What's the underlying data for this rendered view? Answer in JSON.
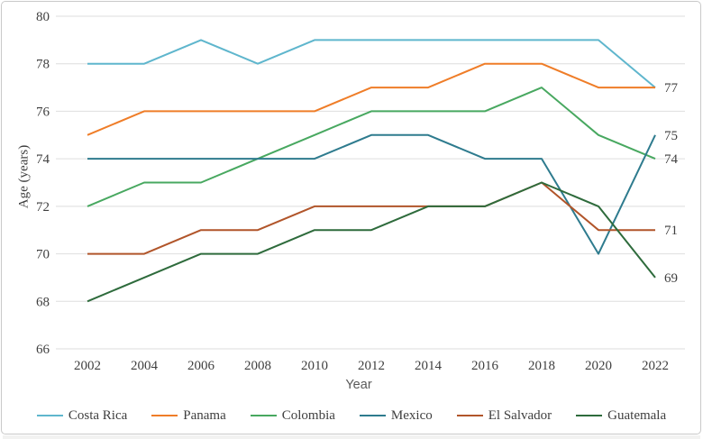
{
  "figure": {
    "frame_border_color": "#c9c9c9",
    "background_color": "#ffffff"
  },
  "chart_data": {
    "type": "line",
    "title": "",
    "xlabel": "Year",
    "ylabel": "Age (years)",
    "x": [
      2002,
      2004,
      2006,
      2008,
      2010,
      2012,
      2014,
      2016,
      2018,
      2020,
      2022
    ],
    "ylim": [
      66,
      80
    ],
    "ytick_step": 2,
    "yticks": [
      66,
      68,
      70,
      72,
      74,
      76,
      78,
      80
    ],
    "grid": "horizontal-only",
    "gridline_color": "#dedede",
    "tick_label_color": "#3f3f3f",
    "x_axis_title_color": "#595959",
    "legend_position": "bottom-center",
    "line_width": 2,
    "series": [
      {
        "name": "Costa Rica",
        "color": "#5fb6cd",
        "values": [
          78,
          78,
          79,
          78,
          79,
          79,
          79,
          79,
          79,
          79,
          77
        ],
        "end_label": null
      },
      {
        "name": "Panama",
        "color": "#ef7d28",
        "values": [
          75,
          76,
          76,
          76,
          76,
          77,
          77,
          78,
          78,
          77,
          77
        ],
        "end_label": "77"
      },
      {
        "name": "Colombia",
        "color": "#48a860",
        "values": [
          72,
          73,
          73,
          74,
          75,
          76,
          76,
          76,
          77,
          75,
          74
        ],
        "end_label": "74"
      },
      {
        "name": "Mexico",
        "color": "#2e7b8e",
        "values": [
          74,
          74,
          74,
          74,
          74,
          75,
          75,
          74,
          74,
          70,
          75
        ],
        "end_label": "75"
      },
      {
        "name": "El Salvador",
        "color": "#b1552a",
        "values": [
          70,
          70,
          71,
          71,
          72,
          72,
          72,
          72,
          73,
          71,
          71
        ],
        "end_label": "71"
      },
      {
        "name": "Guatemala",
        "color": "#2e6b3c",
        "values": [
          68,
          69,
          70,
          70,
          71,
          71,
          72,
          72,
          73,
          72,
          69
        ],
        "end_label": "69"
      }
    ]
  }
}
